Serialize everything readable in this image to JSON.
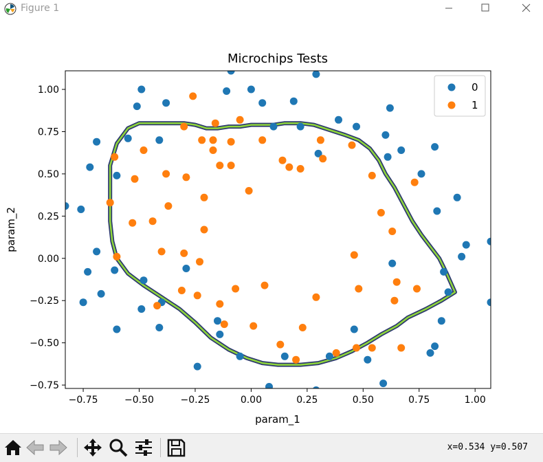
{
  "window": {
    "title": "Figure 1"
  },
  "toolbar": {
    "buttons": [
      {
        "name": "home-button",
        "icon": "home-icon"
      },
      {
        "name": "back-button",
        "icon": "left-arrow-icon"
      },
      {
        "name": "forward-button",
        "icon": "right-arrow-icon"
      },
      {
        "name": "pan-button",
        "icon": "move-icon"
      },
      {
        "name": "zoom-button",
        "icon": "magnifier-icon"
      },
      {
        "name": "configure-subplots-button",
        "icon": "sliders-icon"
      },
      {
        "name": "save-button",
        "icon": "floppy-disk-icon"
      }
    ],
    "coords": "x=0.534  y=0.507"
  },
  "chart_data": {
    "type": "scatter",
    "title": "Microchips Tests",
    "xlabel": "param_1",
    "ylabel": "param_2",
    "xlim": [
      -0.83,
      1.07
    ],
    "ylim": [
      -0.77,
      1.11
    ],
    "xticks": [
      -0.75,
      -0.5,
      -0.25,
      0.0,
      0.25,
      0.5,
      0.75,
      1.0
    ],
    "xtick_labels": [
      "−0.75",
      "−0.50",
      "−0.25",
      "0.00",
      "0.25",
      "0.50",
      "0.75",
      "1.00"
    ],
    "yticks": [
      -0.75,
      -0.5,
      -0.25,
      0.0,
      0.25,
      0.5,
      0.75,
      1.0
    ],
    "ytick_labels": [
      "−0.75",
      "−0.50",
      "−0.25",
      "0.00",
      "0.25",
      "0.50",
      "0.75",
      "1.00"
    ],
    "legend_position": "top-right",
    "series": [
      {
        "name": "0",
        "color": "#1f77b4",
        "points": [
          [
            -0.83,
            0.31
          ],
          [
            -0.76,
            0.29
          ],
          [
            -0.69,
            0.69
          ],
          [
            -0.72,
            0.54
          ],
          [
            -0.69,
            0.04
          ],
          [
            -0.73,
            -0.08
          ],
          [
            -0.75,
            -0.26
          ],
          [
            -0.67,
            -0.21
          ],
          [
            -0.61,
            -0.07
          ],
          [
            -0.6,
            -0.42
          ],
          [
            -0.6,
            0.49
          ],
          [
            -0.55,
            0.71
          ],
          [
            -0.51,
            0.9
          ],
          [
            -0.49,
            1.0
          ],
          [
            -0.41,
            0.7
          ],
          [
            -0.38,
            0.92
          ],
          [
            -0.48,
            -0.13
          ],
          [
            -0.49,
            -0.3
          ],
          [
            -0.41,
            -0.41
          ],
          [
            -0.4,
            -0.26
          ],
          [
            -0.29,
            -0.06
          ],
          [
            -0.24,
            -0.64
          ],
          [
            -0.15,
            -0.37
          ],
          [
            -0.14,
            -0.45
          ],
          [
            -0.09,
            1.11
          ],
          [
            -0.11,
            0.99
          ],
          [
            0.0,
            1.0
          ],
          [
            0.05,
            0.92
          ],
          [
            0.1,
            0.78
          ],
          [
            0.19,
            0.93
          ],
          [
            0.22,
            0.78
          ],
          [
            0.29,
            1.09
          ],
          [
            0.3,
            0.62
          ],
          [
            0.39,
            0.82
          ],
          [
            0.47,
            0.78
          ],
          [
            0.6,
            0.73
          ],
          [
            0.62,
            0.89
          ],
          [
            0.61,
            0.6
          ],
          [
            0.67,
            0.64
          ],
          [
            0.76,
            0.5
          ],
          [
            0.82,
            0.66
          ],
          [
            0.83,
            0.28
          ],
          [
            0.92,
            0.36
          ],
          [
            0.96,
            0.08
          ],
          [
            0.94,
            0.01
          ],
          [
            1.07,
            0.1
          ],
          [
            0.86,
            -0.08
          ],
          [
            0.88,
            -0.2
          ],
          [
            0.85,
            -0.37
          ],
          [
            0.82,
            -0.52
          ],
          [
            0.8,
            -0.56
          ],
          [
            0.63,
            -0.03
          ],
          [
            0.59,
            -0.74
          ],
          [
            0.52,
            -0.6
          ],
          [
            0.46,
            -0.42
          ],
          [
            0.35,
            -0.58
          ],
          [
            0.29,
            -0.78
          ],
          [
            0.08,
            -0.76
          ],
          [
            0.15,
            -0.58
          ],
          [
            -0.05,
            -0.58
          ],
          [
            1.07,
            -0.26
          ]
        ]
      },
      {
        "name": "1",
        "color": "#ff7f0e",
        "points": [
          [
            -0.63,
            0.33
          ],
          [
            -0.61,
            0.6
          ],
          [
            -0.6,
            0.01
          ],
          [
            -0.52,
            0.47
          ],
          [
            -0.53,
            0.21
          ],
          [
            -0.48,
            0.64
          ],
          [
            -0.44,
            0.22
          ],
          [
            -0.42,
            -0.28
          ],
          [
            -0.4,
            0.04
          ],
          [
            -0.38,
            0.5
          ],
          [
            -0.37,
            0.31
          ],
          [
            -0.3,
            0.78
          ],
          [
            -0.29,
            0.48
          ],
          [
            -0.3,
            0.03
          ],
          [
            -0.31,
            -0.19
          ],
          [
            -0.26,
            0.96
          ],
          [
            -0.24,
            -0.22
          ],
          [
            -0.22,
            0.7
          ],
          [
            -0.21,
            0.36
          ],
          [
            -0.21,
            0.17
          ],
          [
            -0.23,
            -0.02
          ],
          [
            -0.17,
            0.7
          ],
          [
            -0.17,
            0.64
          ],
          [
            -0.16,
            0.8
          ],
          [
            -0.14,
            0.55
          ],
          [
            -0.09,
            0.55
          ],
          [
            -0.09,
            0.69
          ],
          [
            -0.14,
            -0.27
          ],
          [
            -0.12,
            -0.39
          ],
          [
            -0.07,
            -0.18
          ],
          [
            -0.05,
            0.82
          ],
          [
            -0.01,
            0.4
          ],
          [
            0.01,
            -0.4
          ],
          [
            0.05,
            0.7
          ],
          [
            0.06,
            -0.16
          ],
          [
            0.13,
            -0.51
          ],
          [
            0.14,
            0.58
          ],
          [
            0.17,
            0.54
          ],
          [
            0.2,
            -0.6
          ],
          [
            0.22,
            0.53
          ],
          [
            0.23,
            -0.41
          ],
          [
            0.29,
            -0.23
          ],
          [
            0.31,
            0.7
          ],
          [
            0.32,
            0.59
          ],
          [
            0.38,
            -0.56
          ],
          [
            0.45,
            0.67
          ],
          [
            0.46,
            0.02
          ],
          [
            0.47,
            -0.53
          ],
          [
            0.48,
            -0.18
          ],
          [
            0.54,
            -0.53
          ],
          [
            0.54,
            0.49
          ],
          [
            0.58,
            0.27
          ],
          [
            0.63,
            0.16
          ],
          [
            0.64,
            -0.25
          ],
          [
            0.65,
            -0.14
          ],
          [
            0.67,
            -0.53
          ],
          [
            0.73,
            0.45
          ],
          [
            0.74,
            -0.18
          ]
        ]
      }
    ],
    "boundary": {
      "outer_color": "#2d3a6e",
      "inner_color": "#8fd63a",
      "points": [
        [
          -0.63,
          0.55
        ],
        [
          -0.6,
          0.68
        ],
        [
          -0.55,
          0.77
        ],
        [
          -0.5,
          0.8
        ],
        [
          -0.4,
          0.8
        ],
        [
          -0.3,
          0.8
        ],
        [
          -0.25,
          0.79
        ],
        [
          -0.2,
          0.77
        ],
        [
          -0.15,
          0.77
        ],
        [
          -0.1,
          0.78
        ],
        [
          -0.05,
          0.78
        ],
        [
          0.0,
          0.79
        ],
        [
          0.05,
          0.79
        ],
        [
          0.1,
          0.79
        ],
        [
          0.15,
          0.8
        ],
        [
          0.22,
          0.8
        ],
        [
          0.28,
          0.79
        ],
        [
          0.35,
          0.76
        ],
        [
          0.42,
          0.73
        ],
        [
          0.48,
          0.7
        ],
        [
          0.53,
          0.65
        ],
        [
          0.57,
          0.58
        ],
        [
          0.6,
          0.5
        ],
        [
          0.64,
          0.42
        ],
        [
          0.68,
          0.32
        ],
        [
          0.72,
          0.22
        ],
        [
          0.76,
          0.14
        ],
        [
          0.8,
          0.07
        ],
        [
          0.84,
          0.0
        ],
        [
          0.87,
          -0.08
        ],
        [
          0.89,
          -0.14
        ],
        [
          0.91,
          -0.2
        ],
        [
          0.85,
          -0.25
        ],
        [
          0.78,
          -0.3
        ],
        [
          0.7,
          -0.35
        ],
        [
          0.65,
          -0.4
        ],
        [
          0.58,
          -0.45
        ],
        [
          0.52,
          -0.5
        ],
        [
          0.45,
          -0.55
        ],
        [
          0.38,
          -0.59
        ],
        [
          0.3,
          -0.62
        ],
        [
          0.22,
          -0.63
        ],
        [
          0.12,
          -0.63
        ],
        [
          0.05,
          -0.62
        ],
        [
          -0.02,
          -0.59
        ],
        [
          -0.1,
          -0.54
        ],
        [
          -0.18,
          -0.47
        ],
        [
          -0.25,
          -0.38
        ],
        [
          -0.32,
          -0.3
        ],
        [
          -0.4,
          -0.23
        ],
        [
          -0.48,
          -0.16
        ],
        [
          -0.55,
          -0.09
        ],
        [
          -0.6,
          0.0
        ],
        [
          -0.62,
          0.1
        ],
        [
          -0.63,
          0.22
        ],
        [
          -0.63,
          0.35
        ],
        [
          -0.63,
          0.45
        ]
      ]
    }
  }
}
